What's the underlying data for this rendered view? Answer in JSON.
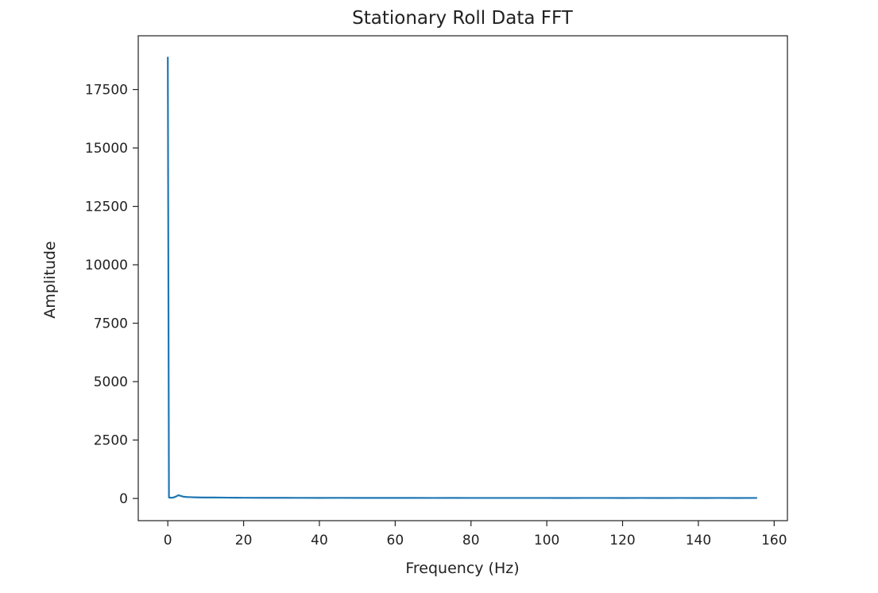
{
  "chart_data": {
    "type": "line",
    "title": "Stationary Roll Data FFT",
    "xlabel": "Frequency (Hz)",
    "ylabel": "Amplitude",
    "xlim": [
      -7.8,
      163.5
    ],
    "ylim": [
      -950,
      19800
    ],
    "xticks": [
      0,
      20,
      40,
      60,
      80,
      100,
      120,
      140,
      160
    ],
    "xtick_labels": [
      "0",
      "20",
      "40",
      "60",
      "80",
      "100",
      "120",
      "140",
      "160"
    ],
    "yticks": [
      0,
      2500,
      5000,
      7500,
      10000,
      12500,
      15000,
      17500
    ],
    "ytick_labels": [
      "0",
      "2500",
      "5000",
      "7500",
      "10000",
      "12500",
      "15000",
      "17500"
    ],
    "grid": false,
    "series": [
      {
        "color": "#1f77b4",
        "x": [
          0,
          0.3,
          0.8,
          1.5,
          2.2,
          2.8,
          3.3,
          4,
          5,
          6,
          7,
          8,
          10,
          12,
          14,
          16,
          18,
          20,
          25,
          30,
          35,
          40,
          45,
          50,
          55,
          60,
          65,
          70,
          75,
          80,
          85,
          90,
          95,
          100,
          105,
          110,
          115,
          120,
          125,
          130,
          135,
          140,
          145,
          150,
          155.5
        ],
        "values": [
          18900,
          45,
          28,
          42,
          85,
          140,
          115,
          80,
          62,
          55,
          48,
          44,
          40,
          42,
          38,
          34,
          32,
          30,
          28,
          27,
          26,
          25,
          26,
          24,
          25,
          23,
          24,
          22,
          23,
          22,
          21,
          22,
          21,
          22,
          20,
          21,
          22,
          20,
          21,
          20,
          21,
          20,
          21,
          20,
          22
        ]
      }
    ]
  }
}
